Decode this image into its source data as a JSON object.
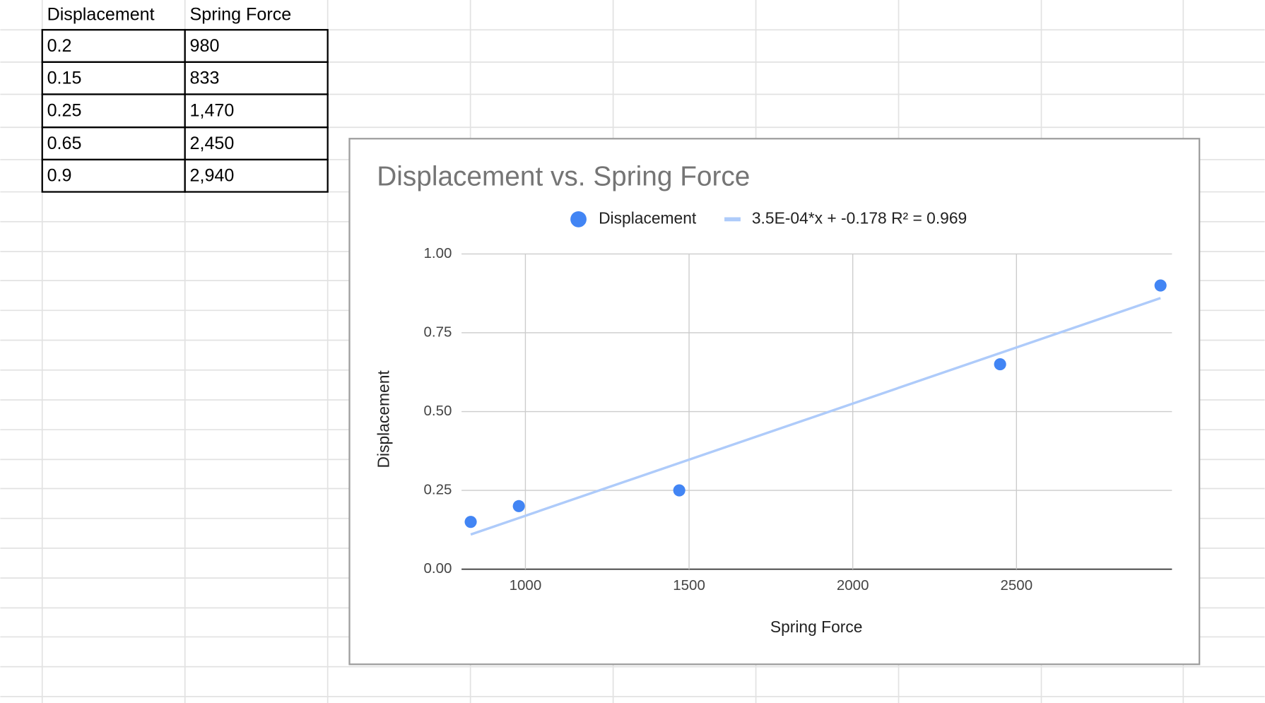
{
  "table": {
    "header": [
      "Displacement",
      "Spring Force"
    ],
    "rows": [
      [
        "0.2",
        "980"
      ],
      [
        "0.15",
        "833"
      ],
      [
        "0.25",
        "1,470"
      ],
      [
        "0.65",
        "2,450"
      ],
      [
        "0.9",
        "2,940"
      ]
    ]
  },
  "chart_data": {
    "type": "scatter",
    "title": "Displacement vs. Spring Force",
    "x_label": "Spring Force",
    "y_label": "Displacement",
    "series": [
      {
        "name": "Displacement",
        "color": "#4285f4",
        "x": [
          980,
          833,
          1470,
          2450,
          2940
        ],
        "values": [
          0.2,
          0.15,
          0.25,
          0.65,
          0.9
        ]
      },
      {
        "name": "3.5E-04*x + -0.178 R² = 0.969",
        "color": "#aecbfa",
        "x": [
          833,
          2940
        ],
        "values": [
          0.11,
          0.86
        ]
      }
    ],
    "xlim": [
      805,
      2975
    ],
    "xticks": [
      1000,
      1500,
      2000,
      2500
    ],
    "ylim": [
      0,
      1
    ],
    "yticks": [
      {
        "value": 0,
        "label": "0.00"
      },
      {
        "value": 0.25,
        "label": "0.25"
      },
      {
        "value": 0.5,
        "label": "0.50"
      },
      {
        "value": 0.75,
        "label": "0.75"
      },
      {
        "value": 1,
        "label": "1.00"
      }
    ],
    "grid": true
  }
}
